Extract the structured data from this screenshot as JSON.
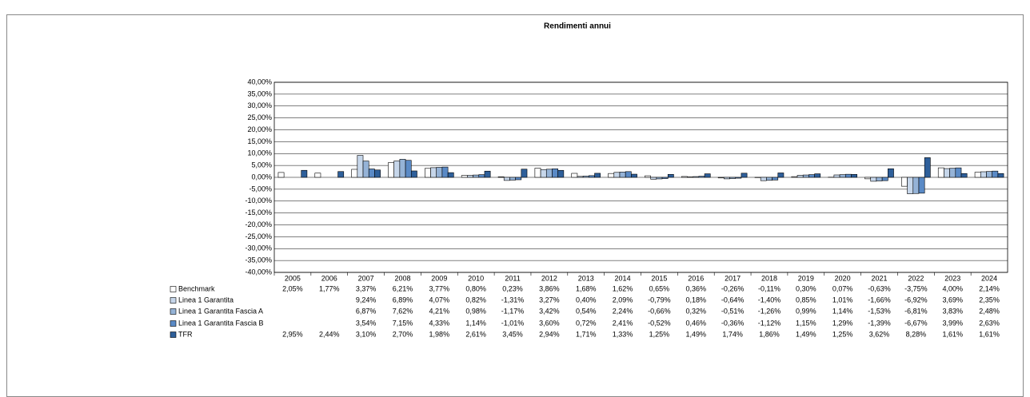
{
  "chart_data": {
    "type": "bar",
    "title": "Rendimenti annui",
    "categories": [
      "2005",
      "2006",
      "2007",
      "2008",
      "2009",
      "2010",
      "2011",
      "2012",
      "2013",
      "2014",
      "2015",
      "2016",
      "2017",
      "2018",
      "2019",
      "2020",
      "2021",
      "2022",
      "2023",
      "2024"
    ],
    "ylim": [
      -40,
      40
    ],
    "yticks": [
      {
        "value": -40,
        "label": "-40,00%"
      },
      {
        "value": -35,
        "label": "-35,00%"
      },
      {
        "value": -30,
        "label": "-30,00%"
      },
      {
        "value": -25,
        "label": "-25,00%"
      },
      {
        "value": -20,
        "label": "-20,00%"
      },
      {
        "value": -15,
        "label": "-15,00%"
      },
      {
        "value": -10,
        "label": "-10,00%"
      },
      {
        "value": -5,
        "label": "-5,00%"
      },
      {
        "value": 0,
        "label": "0,00%"
      },
      {
        "value": 5,
        "label": "5,00%"
      },
      {
        "value": 10,
        "label": "10,00%"
      },
      {
        "value": 15,
        "label": "15,00%"
      },
      {
        "value": 20,
        "label": "20,00%"
      },
      {
        "value": 25,
        "label": "25,00%"
      },
      {
        "value": 30,
        "label": "30,00%"
      },
      {
        "value": 35,
        "label": "35,00%"
      },
      {
        "value": 40,
        "label": "40,00%"
      }
    ],
    "grid": true,
    "series": [
      {
        "name": "Benchmark",
        "color": "#ffffff",
        "values": [
          2.05,
          1.77,
          3.37,
          6.21,
          3.77,
          0.8,
          0.23,
          3.86,
          1.68,
          1.62,
          0.65,
          0.36,
          -0.26,
          -0.11,
          0.3,
          0.07,
          -0.63,
          -3.75,
          4.0,
          2.14
        ],
        "value_labels": [
          "2,05%",
          "1,77%",
          "3,37%",
          "6,21%",
          "3,77%",
          "0,80%",
          "0,23%",
          "3,86%",
          "1,68%",
          "1,62%",
          "0,65%",
          "0,36%",
          "-0,26%",
          "-0,11%",
          "0,30%",
          "0,07%",
          "-0,63%",
          "-3,75%",
          "4,00%",
          "2,14%"
        ]
      },
      {
        "name": "Linea 1 Garantita",
        "color": "#c6d6ea",
        "values": [
          null,
          null,
          9.24,
          6.89,
          4.07,
          0.82,
          -1.31,
          3.27,
          0.4,
          2.09,
          -0.79,
          0.18,
          -0.64,
          -1.4,
          0.85,
          1.01,
          -1.66,
          -6.92,
          3.69,
          2.35
        ],
        "value_labels": [
          null,
          null,
          "9,24%",
          "6,89%",
          "4,07%",
          "0,82%",
          "-1,31%",
          "3,27%",
          "0,40%",
          "2,09%",
          "-0,79%",
          "0,18%",
          "-0,64%",
          "-1,40%",
          "0,85%",
          "1,01%",
          "-1,66%",
          "-6,92%",
          "3,69%",
          "2,35%"
        ]
      },
      {
        "name": "Linea 1 Garantita Fascia A",
        "color": "#95b3d7",
        "values": [
          null,
          null,
          6.87,
          7.62,
          4.21,
          0.98,
          -1.17,
          3.42,
          0.54,
          2.24,
          -0.66,
          0.32,
          -0.51,
          -1.26,
          0.99,
          1.14,
          -1.53,
          -6.81,
          3.83,
          2.48
        ],
        "value_labels": [
          null,
          null,
          "6,87%",
          "7,62%",
          "4,21%",
          "0,98%",
          "-1,17%",
          "3,42%",
          "0,54%",
          "2,24%",
          "-0,66%",
          "0,32%",
          "-0,51%",
          "-1,26%",
          "0,99%",
          "1,14%",
          "-1,53%",
          "-6,81%",
          "3,83%",
          "2,48%"
        ]
      },
      {
        "name": "Linea 1 Garantita Fascia B",
        "color": "#5a8ac6",
        "values": [
          null,
          null,
          3.54,
          7.15,
          4.33,
          1.14,
          -1.01,
          3.6,
          0.72,
          2.41,
          -0.52,
          0.46,
          -0.36,
          -1.12,
          1.15,
          1.29,
          -1.39,
          -6.67,
          3.99,
          2.63
        ],
        "value_labels": [
          null,
          null,
          "3,54%",
          "7,15%",
          "4,33%",
          "1,14%",
          "-1,01%",
          "3,60%",
          "0,72%",
          "2,41%",
          "-0,52%",
          "0,46%",
          "-0,36%",
          "-1,12%",
          "1,15%",
          "1,29%",
          "-1,39%",
          "-6,67%",
          "3,99%",
          "2,63%"
        ]
      },
      {
        "name": "TFR",
        "color": "#2e5f9a",
        "values": [
          2.95,
          2.44,
          3.1,
          2.7,
          1.98,
          2.61,
          3.45,
          2.94,
          1.71,
          1.33,
          1.25,
          1.49,
          1.74,
          1.86,
          1.49,
          1.25,
          3.62,
          8.28,
          1.61,
          1.61
        ],
        "value_labels": [
          "2,95%",
          "2,44%",
          "3,10%",
          "2,70%",
          "1,98%",
          "2,61%",
          "3,45%",
          "2,94%",
          "1,71%",
          "1,33%",
          "1,25%",
          "1,49%",
          "1,74%",
          "1,86%",
          "1,49%",
          "1,25%",
          "3,62%",
          "8,28%",
          "1,61%",
          "1,61%"
        ]
      }
    ]
  }
}
